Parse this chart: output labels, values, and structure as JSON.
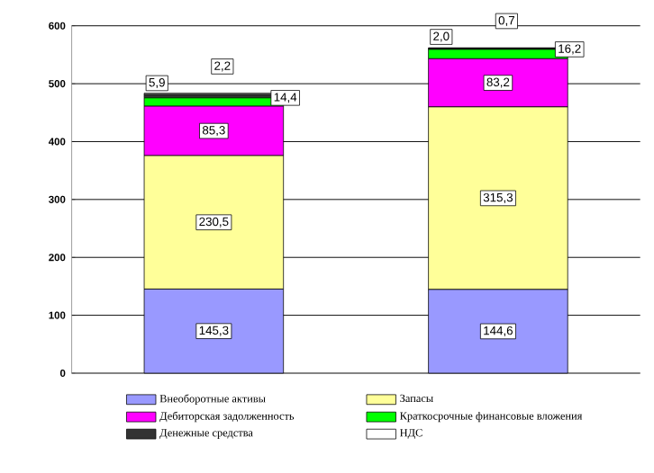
{
  "chart_data": {
    "type": "bar",
    "stacked": true,
    "categories": [
      null,
      null
    ],
    "series": [
      {
        "name": "Внеоборотные активы",
        "color": "#9999ff",
        "values": [
          145.3,
          144.6
        ],
        "value_labels": [
          "145,3",
          "144,6"
        ]
      },
      {
        "name": "Запасы",
        "color": "#ffff99",
        "values": [
          230.5,
          315.3
        ],
        "value_labels": [
          "230,5",
          "315,3"
        ]
      },
      {
        "name": "Дебиторская задолженность",
        "color": "#ff00ff",
        "values": [
          85.3,
          83.2
        ],
        "value_labels": [
          "85,3",
          "83,2"
        ]
      },
      {
        "name": "Краткосрочные финансовые вложения",
        "color": "#00ff00",
        "values": [
          14.4,
          16.2
        ],
        "value_labels": [
          "14,4",
          "16,2"
        ]
      },
      {
        "name": "Денежные средства",
        "color": "#333333",
        "values": [
          5.9,
          2.0
        ],
        "value_labels": [
          "5,9",
          "2,0"
        ]
      },
      {
        "name": "НДС",
        "color": "#ffffff",
        "values": [
          2.2,
          0.7
        ],
        "value_labels": [
          "2,2",
          "0,7"
        ]
      }
    ],
    "ylim": [
      0,
      600
    ],
    "yticks": [
      0,
      100,
      200,
      300,
      400,
      500,
      600
    ],
    "grid": "y",
    "legend": "bottom",
    "tick_labels": "y"
  }
}
